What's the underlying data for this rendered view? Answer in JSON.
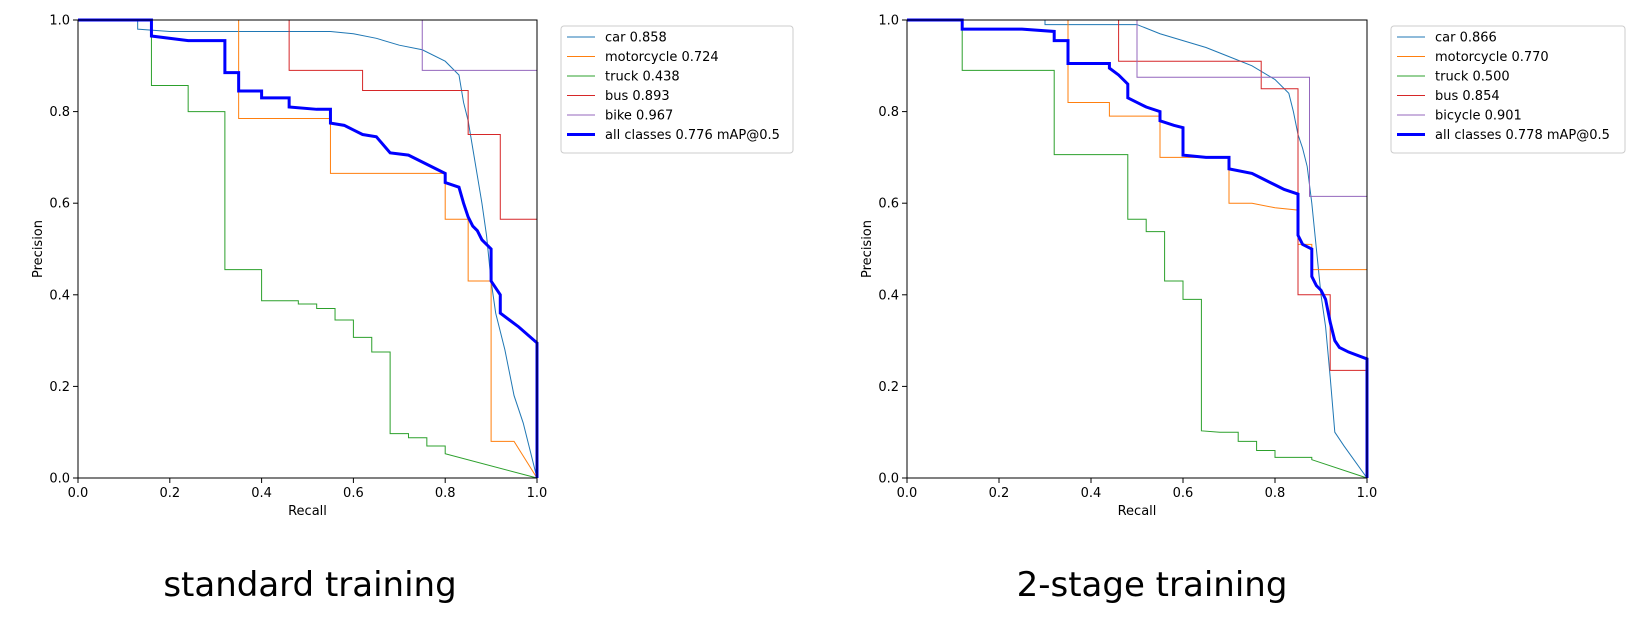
{
  "panels": [
    {
      "caption": "standard training"
    },
    {
      "caption": "2-stage training"
    }
  ],
  "colors": {
    "car": "#1f77b4",
    "motorcycle": "#ff7f0e",
    "truck": "#2ca02c",
    "bus": "#d62728",
    "bike": "#9467bd",
    "all": "#0000ff"
  },
  "chart_data": [
    {
      "type": "line",
      "xlabel": "Recall",
      "ylabel": "Precision",
      "xlim": [
        0,
        1
      ],
      "ylim": [
        0,
        1
      ],
      "xticks": [
        "0.0",
        "0.2",
        "0.4",
        "0.6",
        "0.8",
        "1.0"
      ],
      "yticks": [
        "0.0",
        "0.2",
        "0.4",
        "0.6",
        "0.8",
        "1.0"
      ],
      "grid": false,
      "legend_position": "outside-top-right",
      "series": [
        {
          "name": "car 0.858",
          "color": "#1f77b4",
          "width": 1,
          "points": [
            [
              0,
              1
            ],
            [
              0.13,
              1
            ],
            [
              0.13,
              0.98
            ],
            [
              0.2,
              0.975
            ],
            [
              0.55,
              0.975
            ],
            [
              0.6,
              0.97
            ],
            [
              0.65,
              0.96
            ],
            [
              0.7,
              0.945
            ],
            [
              0.75,
              0.935
            ],
            [
              0.8,
              0.91
            ],
            [
              0.83,
              0.88
            ],
            [
              0.84,
              0.82
            ],
            [
              0.85,
              0.78
            ],
            [
              0.86,
              0.72
            ],
            [
              0.87,
              0.66
            ],
            [
              0.88,
              0.6
            ],
            [
              0.89,
              0.53
            ],
            [
              0.9,
              0.43
            ],
            [
              0.91,
              0.36
            ],
            [
              0.93,
              0.28
            ],
            [
              0.95,
              0.18
            ],
            [
              0.97,
              0.12
            ],
            [
              1,
              0
            ]
          ]
        },
        {
          "name": "motorcycle 0.724",
          "color": "#ff7f0e",
          "width": 1,
          "points": [
            [
              0,
              1
            ],
            [
              0.35,
              1
            ],
            [
              0.35,
              0.785
            ],
            [
              0.55,
              0.785
            ],
            [
              0.55,
              0.665
            ],
            [
              0.8,
              0.665
            ],
            [
              0.8,
              0.565
            ],
            [
              0.85,
              0.565
            ],
            [
              0.85,
              0.43
            ],
            [
              0.9,
              0.43
            ],
            [
              0.9,
              0.08
            ],
            [
              0.95,
              0.08
            ],
            [
              1,
              0
            ]
          ]
        },
        {
          "name": "truck 0.438",
          "color": "#2ca02c",
          "width": 1,
          "points": [
            [
              0,
              1
            ],
            [
              0.16,
              1
            ],
            [
              0.16,
              0.857
            ],
            [
              0.24,
              0.857
            ],
            [
              0.24,
              0.8
            ],
            [
              0.32,
              0.8
            ],
            [
              0.32,
              0.455
            ],
            [
              0.4,
              0.455
            ],
            [
              0.4,
              0.387
            ],
            [
              0.48,
              0.387
            ],
            [
              0.48,
              0.38
            ],
            [
              0.52,
              0.38
            ],
            [
              0.52,
              0.37
            ],
            [
              0.56,
              0.37
            ],
            [
              0.56,
              0.345
            ],
            [
              0.6,
              0.345
            ],
            [
              0.6,
              0.307
            ],
            [
              0.64,
              0.307
            ],
            [
              0.64,
              0.275
            ],
            [
              0.68,
              0.275
            ],
            [
              0.68,
              0.097
            ],
            [
              0.72,
              0.097
            ],
            [
              0.72,
              0.088
            ],
            [
              0.76,
              0.088
            ],
            [
              0.76,
              0.07
            ],
            [
              0.8,
              0.07
            ],
            [
              0.8,
              0.053
            ],
            [
              1,
              0
            ]
          ]
        },
        {
          "name": "bus 0.893",
          "color": "#d62728",
          "width": 1,
          "points": [
            [
              0,
              1
            ],
            [
              0.46,
              1
            ],
            [
              0.46,
              0.89
            ],
            [
              0.62,
              0.89
            ],
            [
              0.62,
              0.846
            ],
            [
              0.85,
              0.846
            ],
            [
              0.85,
              0.75
            ],
            [
              0.92,
              0.75
            ],
            [
              0.92,
              0.565
            ],
            [
              1,
              0.565
            ],
            [
              1,
              0
            ]
          ]
        },
        {
          "name": "bike 0.967",
          "color": "#9467bd",
          "width": 1,
          "points": [
            [
              0,
              1
            ],
            [
              0.75,
              1
            ],
            [
              0.75,
              0.89
            ],
            [
              1,
              0.89
            ],
            [
              1,
              0
            ]
          ]
        },
        {
          "name": "all classes 0.776 mAP@0.5",
          "color": "#0000ff",
          "width": 3,
          "points": [
            [
              0,
              1
            ],
            [
              0.16,
              1
            ],
            [
              0.16,
              0.965
            ],
            [
              0.24,
              0.955
            ],
            [
              0.32,
              0.955
            ],
            [
              0.32,
              0.885
            ],
            [
              0.35,
              0.885
            ],
            [
              0.35,
              0.845
            ],
            [
              0.4,
              0.845
            ],
            [
              0.4,
              0.83
            ],
            [
              0.46,
              0.83
            ],
            [
              0.46,
              0.81
            ],
            [
              0.52,
              0.805
            ],
            [
              0.55,
              0.805
            ],
            [
              0.55,
              0.775
            ],
            [
              0.58,
              0.77
            ],
            [
              0.6,
              0.76
            ],
            [
              0.62,
              0.75
            ],
            [
              0.65,
              0.745
            ],
            [
              0.68,
              0.71
            ],
            [
              0.72,
              0.705
            ],
            [
              0.75,
              0.69
            ],
            [
              0.78,
              0.675
            ],
            [
              0.8,
              0.665
            ],
            [
              0.8,
              0.645
            ],
            [
              0.83,
              0.635
            ],
            [
              0.84,
              0.6
            ],
            [
              0.85,
              0.57
            ],
            [
              0.86,
              0.55
            ],
            [
              0.87,
              0.54
            ],
            [
              0.88,
              0.52
            ],
            [
              0.9,
              0.5
            ],
            [
              0.9,
              0.43
            ],
            [
              0.92,
              0.4
            ],
            [
              0.92,
              0.36
            ],
            [
              0.94,
              0.345
            ],
            [
              0.96,
              0.33
            ],
            [
              1,
              0.295
            ],
            [
              1,
              0
            ]
          ]
        }
      ]
    },
    {
      "type": "line",
      "xlabel": "Recall",
      "ylabel": "Precision",
      "xlim": [
        0,
        1
      ],
      "ylim": [
        0,
        1
      ],
      "xticks": [
        "0.0",
        "0.2",
        "0.4",
        "0.6",
        "0.8",
        "1.0"
      ],
      "yticks": [
        "0.0",
        "0.2",
        "0.4",
        "0.6",
        "0.8",
        "1.0"
      ],
      "grid": false,
      "legend_position": "outside-top-right",
      "series": [
        {
          "name": "car 0.866",
          "color": "#1f77b4",
          "width": 1,
          "points": [
            [
              0,
              1
            ],
            [
              0.3,
              1
            ],
            [
              0.3,
              0.99
            ],
            [
              0.5,
              0.99
            ],
            [
              0.55,
              0.97
            ],
            [
              0.6,
              0.955
            ],
            [
              0.65,
              0.94
            ],
            [
              0.7,
              0.92
            ],
            [
              0.75,
              0.9
            ],
            [
              0.8,
              0.87
            ],
            [
              0.83,
              0.84
            ],
            [
              0.84,
              0.8
            ],
            [
              0.85,
              0.75
            ],
            [
              0.86,
              0.72
            ],
            [
              0.87,
              0.68
            ],
            [
              0.88,
              0.6
            ],
            [
              0.89,
              0.5
            ],
            [
              0.9,
              0.4
            ],
            [
              0.91,
              0.33
            ],
            [
              0.92,
              0.22
            ],
            [
              0.93,
              0.1
            ],
            [
              0.95,
              0.07
            ],
            [
              1,
              0
            ]
          ]
        },
        {
          "name": "motorcycle 0.770",
          "color": "#ff7f0e",
          "width": 1,
          "points": [
            [
              0,
              1
            ],
            [
              0.35,
              1
            ],
            [
              0.35,
              0.82
            ],
            [
              0.44,
              0.82
            ],
            [
              0.44,
              0.79
            ],
            [
              0.55,
              0.79
            ],
            [
              0.55,
              0.7
            ],
            [
              0.7,
              0.7
            ],
            [
              0.7,
              0.6
            ],
            [
              0.75,
              0.6
            ],
            [
              0.8,
              0.59
            ],
            [
              0.85,
              0.585
            ],
            [
              0.85,
              0.51
            ],
            [
              0.88,
              0.51
            ],
            [
              0.88,
              0.455
            ],
            [
              1,
              0.455
            ],
            [
              1,
              0
            ]
          ]
        },
        {
          "name": "truck 0.500",
          "color": "#2ca02c",
          "width": 1,
          "points": [
            [
              0,
              1
            ],
            [
              0.12,
              1
            ],
            [
              0.12,
              0.89
            ],
            [
              0.32,
              0.89
            ],
            [
              0.32,
              0.706
            ],
            [
              0.48,
              0.706
            ],
            [
              0.48,
              0.565
            ],
            [
              0.52,
              0.565
            ],
            [
              0.52,
              0.538
            ],
            [
              0.56,
              0.538
            ],
            [
              0.56,
              0.43
            ],
            [
              0.6,
              0.43
            ],
            [
              0.6,
              0.39
            ],
            [
              0.64,
              0.39
            ],
            [
              0.64,
              0.103
            ],
            [
              0.68,
              0.1
            ],
            [
              0.72,
              0.1
            ],
            [
              0.72,
              0.08
            ],
            [
              0.76,
              0.08
            ],
            [
              0.76,
              0.06
            ],
            [
              0.8,
              0.06
            ],
            [
              0.8,
              0.045
            ],
            [
              0.88,
              0.045
            ],
            [
              0.88,
              0.04
            ],
            [
              1,
              0
            ]
          ]
        },
        {
          "name": "bus 0.854",
          "color": "#d62728",
          "width": 1,
          "points": [
            [
              0,
              1
            ],
            [
              0.46,
              1
            ],
            [
              0.46,
              0.91
            ],
            [
              0.77,
              0.91
            ],
            [
              0.77,
              0.85
            ],
            [
              0.85,
              0.85
            ],
            [
              0.85,
              0.4
            ],
            [
              0.92,
              0.4
            ],
            [
              0.92,
              0.235
            ],
            [
              1,
              0.235
            ],
            [
              1,
              0
            ]
          ]
        },
        {
          "name": "bicycle 0.901",
          "color": "#9467bd",
          "width": 1,
          "points": [
            [
              0,
              1
            ],
            [
              0.5,
              1
            ],
            [
              0.5,
              0.875
            ],
            [
              0.875,
              0.875
            ],
            [
              0.875,
              0.615
            ],
            [
              1,
              0.615
            ],
            [
              1,
              0
            ]
          ]
        },
        {
          "name": "all classes 0.778 mAP@0.5",
          "color": "#0000ff",
          "width": 3,
          "points": [
            [
              0,
              1
            ],
            [
              0.12,
              1
            ],
            [
              0.12,
              0.98
            ],
            [
              0.25,
              0.98
            ],
            [
              0.32,
              0.975
            ],
            [
              0.32,
              0.955
            ],
            [
              0.35,
              0.955
            ],
            [
              0.35,
              0.905
            ],
            [
              0.4,
              0.905
            ],
            [
              0.44,
              0.905
            ],
            [
              0.44,
              0.895
            ],
            [
              0.46,
              0.88
            ],
            [
              0.48,
              0.86
            ],
            [
              0.48,
              0.83
            ],
            [
              0.5,
              0.82
            ],
            [
              0.52,
              0.81
            ],
            [
              0.55,
              0.8
            ],
            [
              0.55,
              0.78
            ],
            [
              0.58,
              0.77
            ],
            [
              0.6,
              0.765
            ],
            [
              0.6,
              0.705
            ],
            [
              0.65,
              0.7
            ],
            [
              0.7,
              0.7
            ],
            [
              0.7,
              0.675
            ],
            [
              0.75,
              0.665
            ],
            [
              0.77,
              0.655
            ],
            [
              0.8,
              0.64
            ],
            [
              0.82,
              0.63
            ],
            [
              0.85,
              0.62
            ],
            [
              0.85,
              0.53
            ],
            [
              0.86,
              0.51
            ],
            [
              0.88,
              0.5
            ],
            [
              0.88,
              0.44
            ],
            [
              0.89,
              0.42
            ],
            [
              0.9,
              0.41
            ],
            [
              0.91,
              0.39
            ],
            [
              0.92,
              0.34
            ],
            [
              0.93,
              0.3
            ],
            [
              0.94,
              0.285
            ],
            [
              0.96,
              0.275
            ],
            [
              1,
              0.26
            ],
            [
              1,
              0
            ]
          ]
        }
      ]
    }
  ]
}
